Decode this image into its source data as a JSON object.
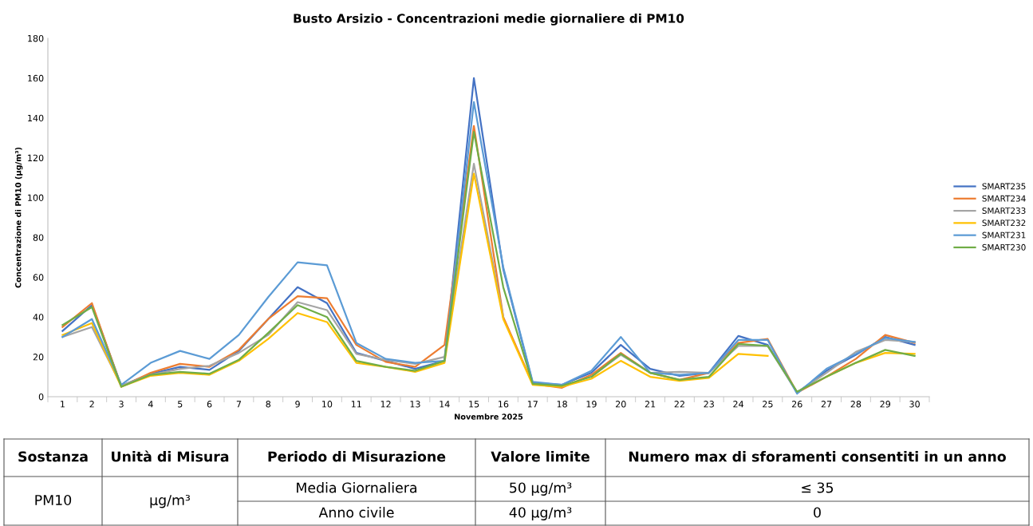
{
  "chart_data": {
    "type": "line",
    "title": "Busto Arsizio - Concentrazioni medie giornaliere di PM10",
    "xlabel": "Novembre 2025",
    "ylabel": "Concentrazione di PM10 (µg/m³)",
    "categories": [
      "1",
      "2",
      "3",
      "4",
      "5",
      "6",
      "7",
      "8",
      "9",
      "10",
      "11",
      "12",
      "13",
      "14",
      "15",
      "16",
      "17",
      "18",
      "19",
      "20",
      "21",
      "22",
      "23",
      "24",
      "25",
      "26",
      "27",
      "28",
      "29",
      "30"
    ],
    "ylim": [
      0,
      180
    ],
    "yticks": [
      0,
      20,
      40,
      60,
      80,
      100,
      120,
      140,
      160,
      180
    ],
    "grid": false,
    "legend": "right",
    "marker": "none",
    "line_style": "solid",
    "series": [
      {
        "name": "SMART235",
        "color": "#4472c4",
        "values": [
          33,
          46,
          5.5,
          11.5,
          15,
          13.5,
          23,
          39,
          55,
          47,
          22,
          18,
          14,
          18,
          160,
          64,
          7,
          6,
          12,
          26,
          14,
          10.5,
          12,
          30.5,
          26,
          2,
          13,
          21,
          30,
          26
        ]
      },
      {
        "name": "SMART234",
        "color": "#ed7d31",
        "values": [
          35,
          47,
          5,
          12,
          16.5,
          15,
          23.5,
          39,
          50.5,
          49.5,
          26,
          17.5,
          15,
          26,
          136,
          40,
          6.5,
          4.5,
          11,
          22,
          12,
          8.5,
          12,
          27,
          29,
          2,
          10,
          19,
          31,
          27
        ]
      },
      {
        "name": "SMART233",
        "color": "#a5a5a5",
        "values": [
          30,
          35,
          5.5,
          11,
          14,
          15.5,
          22,
          31,
          47.5,
          43.5,
          21.5,
          18.5,
          16.5,
          20,
          117,
          40,
          null,
          null,
          10,
          21,
          12,
          12.5,
          12,
          25.5,
          25.5,
          2,
          12,
          22.5,
          28.5,
          27.5
        ]
      },
      {
        "name": "SMART232",
        "color": "#ffc000",
        "values": [
          31,
          37,
          5,
          10.5,
          12,
          11,
          18,
          29,
          42,
          37.5,
          17,
          15,
          12.5,
          17,
          112,
          39,
          6,
          5,
          9,
          18,
          10,
          8,
          9.5,
          21.5,
          20.5,
          null,
          10,
          17,
          22,
          21.5
        ]
      },
      {
        "name": "SMART231",
        "color": "#5b9bd5",
        "values": [
          30,
          39,
          6,
          17,
          23,
          19,
          31,
          50,
          67.5,
          66,
          27,
          19,
          17,
          18,
          148,
          65,
          7.5,
          6,
          13,
          30,
          12,
          11,
          12,
          28.5,
          28.5,
          1.5,
          14,
          21.5,
          29.5,
          27.5
        ]
      },
      {
        "name": "SMART230",
        "color": "#70ad47",
        "values": [
          36,
          45,
          5,
          11,
          12.5,
          11.5,
          18.5,
          32,
          46,
          40,
          18,
          15,
          13,
          18,
          133,
          55,
          6.5,
          5.5,
          10,
          21.5,
          12,
          8.5,
          10,
          26.5,
          25.5,
          2.5,
          10,
          17,
          23.5,
          20.5
        ]
      }
    ],
    "annotations": [
      "Sostanza",
      "Unità di Misura",
      "Periodo di Misurazione",
      "Valore limite",
      "Numero max di sforamenti consentiti in un anno",
      "PM10",
      "µg/m³",
      "Media Giornaliera",
      "50 µg/m³",
      "≤ 35",
      "Anno civile",
      "40 µg/m³",
      "0"
    ]
  }
}
